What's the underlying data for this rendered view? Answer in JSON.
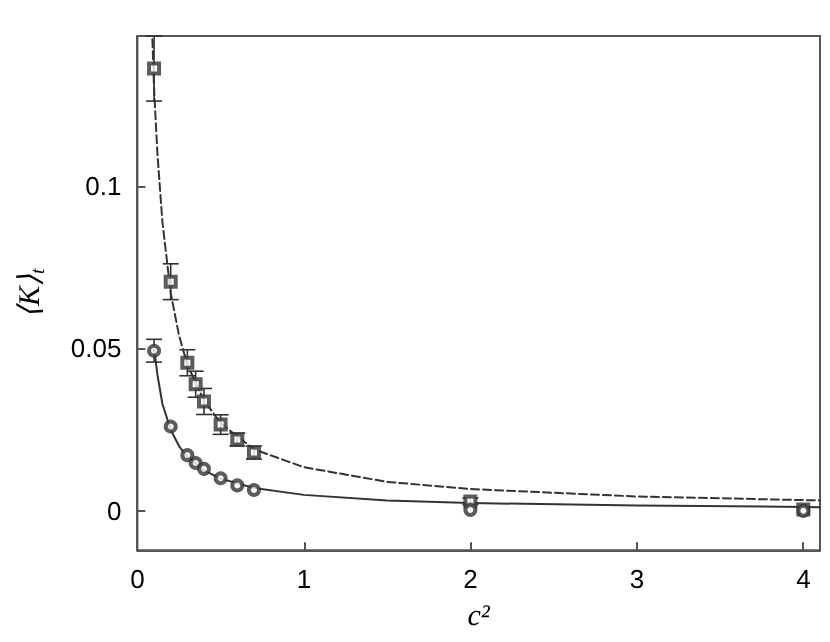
{
  "chart_data": {
    "type": "scatter",
    "xlabel": "c²",
    "ylabel": "⟨K⟩$_{t}$",
    "xlim": [
      0,
      4.1
    ],
    "ylim": [
      -0.012,
      0.146
    ],
    "xticks": [
      0,
      1,
      2,
      3,
      4
    ],
    "yticks": [
      0,
      0.05,
      0.1
    ],
    "grid": false,
    "series": [
      {
        "marker": "square",
        "color": "#333333",
        "x": [
          0.1,
          0.2,
          0.3,
          0.35,
          0.4,
          0.5,
          0.6,
          0.7,
          2,
          4
        ],
        "values": [
          0.136,
          0.0705,
          0.0456,
          0.039,
          0.0337,
          0.0266,
          0.022,
          0.018,
          0.003,
          0.0005
        ],
        "errors": [
          0.01,
          0.0055,
          0.004,
          0.004,
          0.004,
          0.003,
          0.002,
          0.002,
          0.001,
          null
        ]
      },
      {
        "marker": "circle",
        "color": "#333333",
        "x": [
          0.1,
          0.2,
          0.3,
          0.35,
          0.4,
          0.5,
          0.6,
          0.7,
          2,
          4
        ],
        "values": [
          0.0493,
          0.026,
          0.0172,
          0.0148,
          0.013,
          0.0101,
          0.0079,
          0.0065,
          0.0004,
          0.0001
        ],
        "errors": [
          0.0035,
          null,
          null,
          null,
          null,
          null,
          null,
          null,
          null,
          null
        ]
      },
      {
        "type": "line",
        "line_style": "dashed",
        "marker": "none",
        "color": "#333333",
        "x": [
          0.09,
          0.1,
          0.12,
          0.15,
          0.2,
          0.25,
          0.3,
          0.4,
          0.5,
          0.7,
          1,
          1.5,
          2,
          3,
          4,
          4.1
        ],
        "values": [
          0.145,
          0.13,
          0.11,
          0.089,
          0.067,
          0.054,
          0.045,
          0.034,
          0.027,
          0.019,
          0.0135,
          0.009,
          0.0068,
          0.0045,
          0.0034,
          0.0033
        ]
      },
      {
        "type": "line",
        "line_style": "solid",
        "marker": "none",
        "color": "#333333",
        "x": [
          0.1,
          0.12,
          0.15,
          0.2,
          0.25,
          0.3,
          0.4,
          0.5,
          0.7,
          1,
          1.5,
          2,
          3,
          4,
          4.1
        ],
        "values": [
          0.05,
          0.042,
          0.033,
          0.025,
          0.02,
          0.0167,
          0.0125,
          0.01,
          0.0071,
          0.005,
          0.0033,
          0.0025,
          0.0017,
          0.0013,
          0.0012
        ]
      }
    ]
  }
}
